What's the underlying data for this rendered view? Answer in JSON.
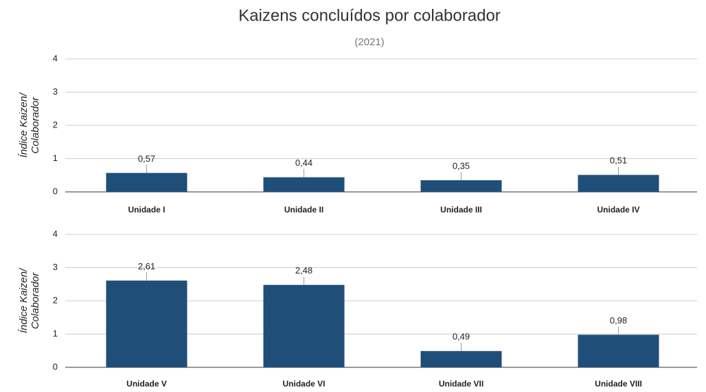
{
  "chart_data": [
    {
      "type": "bar",
      "title": "Kaizens concluídos por colaborador",
      "subtitle": "(2021)",
      "ylabel": [
        "Índice Kaizen/",
        "Colaborador"
      ],
      "categories": [
        "Unidade I",
        "Unidade II",
        "Unidade III",
        "Unidade IV"
      ],
      "values": [
        0.57,
        0.44,
        0.35,
        0.51
      ],
      "value_labels": [
        "0,57",
        "0,44",
        "0,35",
        "0,51"
      ],
      "color": "#1f4e79",
      "ylim": [
        0,
        4
      ],
      "yticks": [
        0,
        1,
        2,
        3,
        4
      ],
      "grid": true
    },
    {
      "type": "bar",
      "ylabel": [
        "Índice Kaizen/",
        "Colaborador"
      ],
      "categories": [
        "Unidade V",
        "Unidade VI",
        "Unidade VII",
        "Unidade VIII"
      ],
      "values": [
        2.61,
        2.48,
        0.49,
        0.98
      ],
      "value_labels": [
        "2,61",
        "2,48",
        "0,49",
        "0,98"
      ],
      "color": "#1f4e79",
      "ylim": [
        0,
        4
      ],
      "yticks": [
        0,
        1,
        2,
        3,
        4
      ],
      "grid": true
    }
  ]
}
